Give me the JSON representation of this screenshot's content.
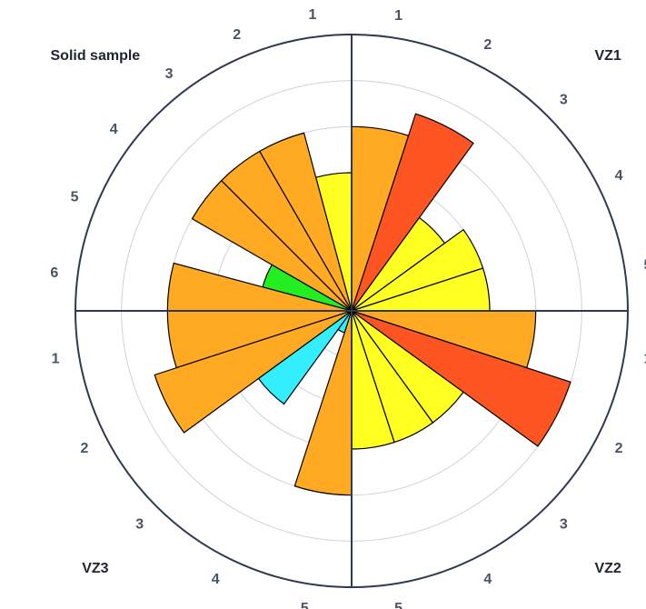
{
  "chart_data": {
    "type": "bar",
    "subtype": "polar-bar",
    "title": "",
    "r_range": [
      0,
      6
    ],
    "grid": true,
    "colors": {
      "lowest": "#22ee22",
      "low": "#ffff22",
      "mid": "#ffaa22",
      "high": "#ff5522",
      "alt": "#33eeff",
      "axis": "#2e3a52",
      "grid": "#c9d3df",
      "tick_text": "#4a5366"
    },
    "sectors": [
      {
        "name": "VZ1",
        "categories": [
          "1",
          "2",
          "3",
          "4",
          "5"
        ],
        "values": [
          4,
          4.5,
          2.5,
          3,
          3
        ],
        "levels": [
          "mid",
          "high",
          "low",
          "low",
          "low"
        ]
      },
      {
        "name": "VZ2",
        "categories": [
          "1",
          "2",
          "3",
          "4",
          "5"
        ],
        "values": [
          4,
          5,
          3,
          3,
          3
        ],
        "levels": [
          "mid",
          "high",
          "low",
          "low",
          "low"
        ]
      },
      {
        "name": "VZ3",
        "categories": [
          "1",
          "2",
          "3",
          "4",
          "5"
        ],
        "values": [
          4,
          4.5,
          2.5,
          0.5,
          4
        ],
        "levels": [
          "mid",
          "mid",
          "alt",
          "alt",
          "mid"
        ]
      },
      {
        "name": "Solid sample",
        "categories": [
          "1",
          "2",
          "3",
          "4",
          "5",
          "6"
        ],
        "values": [
          3,
          4,
          4,
          4,
          2,
          4
        ],
        "levels": [
          "low",
          "mid",
          "mid",
          "mid",
          "lowest",
          "mid"
        ]
      }
    ]
  }
}
